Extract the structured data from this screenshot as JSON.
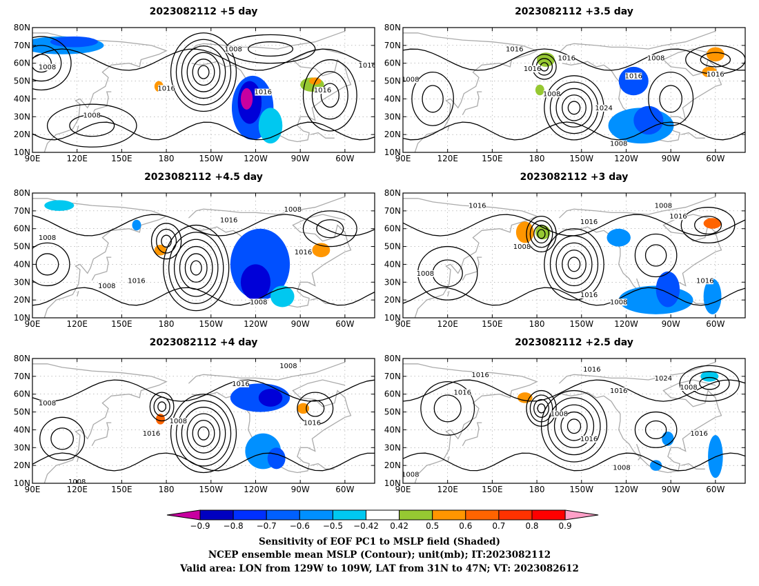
{
  "panels": [
    {
      "title": "2023082112 +5 day",
      "contour_labels": [
        "1008",
        "1008",
        "1008",
        "1016",
        "1016",
        "1016",
        "1016"
      ],
      "blobs": [
        {
          "lon": 110,
          "lat": 70,
          "rx": 28,
          "ry": 5,
          "color": "#0090ff"
        },
        {
          "lon": 118,
          "lat": 72,
          "rx": 16,
          "ry": 3,
          "color": "#0050ff"
        },
        {
          "lon": 238,
          "lat": 35,
          "rx": 14,
          "ry": 18,
          "color": "#0050ff"
        },
        {
          "lon": 236,
          "lat": 38,
          "rx": 8,
          "ry": 12,
          "color": "#0000d8"
        },
        {
          "lon": 234,
          "lat": 40,
          "rx": 4,
          "ry": 6,
          "color": "#c800a0"
        },
        {
          "lon": 250,
          "lat": 25,
          "rx": 8,
          "ry": 10,
          "color": "#00c8f0"
        },
        {
          "lon": 278,
          "lat": 48,
          "rx": 8,
          "ry": 4,
          "color": "#96c832"
        },
        {
          "lon": 280,
          "lat": 50,
          "rx": 4,
          "ry": 2,
          "color": "#ff9600"
        },
        {
          "lon": 175,
          "lat": 47,
          "rx": 3,
          "ry": 3,
          "color": "#ff9600"
        }
      ]
    },
    {
      "title": "2023082112 +3.5 day",
      "contour_labels": [
        "1008",
        "1008",
        "1008",
        "1008",
        "1016",
        "1016",
        "1016",
        "1016",
        "1016",
        "1024"
      ],
      "blobs": [
        {
          "lon": 250,
          "lat": 25,
          "rx": 22,
          "ry": 10,
          "color": "#0090ff"
        },
        {
          "lon": 255,
          "lat": 28,
          "rx": 10,
          "ry": 8,
          "color": "#0050ff"
        },
        {
          "lon": 245,
          "lat": 50,
          "rx": 10,
          "ry": 8,
          "color": "#0050ff"
        },
        {
          "lon": 300,
          "lat": 65,
          "rx": 6,
          "ry": 4,
          "color": "#ff9600"
        },
        {
          "lon": 296,
          "lat": 55,
          "rx": 5,
          "ry": 3,
          "color": "#ff9600"
        },
        {
          "lon": 186,
          "lat": 62,
          "rx": 6,
          "ry": 4,
          "color": "#96c832"
        },
        {
          "lon": 182,
          "lat": 45,
          "rx": 3,
          "ry": 3,
          "color": "#96c832"
        }
      ]
    },
    {
      "title": "2023082112 +4.5 day",
      "contour_labels": [
        "1008",
        "1008",
        "1008",
        "1008",
        "1016",
        "1016",
        "1016"
      ],
      "blobs": [
        {
          "lon": 243,
          "lat": 40,
          "rx": 20,
          "ry": 20,
          "color": "#0050ff"
        },
        {
          "lon": 240,
          "lat": 30,
          "rx": 10,
          "ry": 10,
          "color": "#0000d8"
        },
        {
          "lon": 258,
          "lat": 22,
          "rx": 8,
          "ry": 6,
          "color": "#00c8f0"
        },
        {
          "lon": 284,
          "lat": 48,
          "rx": 6,
          "ry": 4,
          "color": "#ff9600"
        },
        {
          "lon": 176,
          "lat": 48,
          "rx": 4,
          "ry": 3,
          "color": "#ff9600"
        },
        {
          "lon": 108,
          "lat": 73,
          "rx": 10,
          "ry": 3,
          "color": "#00c8f0"
        },
        {
          "lon": 160,
          "lat": 62,
          "rx": 3,
          "ry": 3,
          "color": "#0090ff"
        }
      ]
    },
    {
      "title": "2023082112 +3 day",
      "contour_labels": [
        "1008",
        "1008",
        "1008",
        "1008",
        "1016",
        "1016",
        "1016",
        "1016",
        "1016"
      ],
      "blobs": [
        {
          "lon": 260,
          "lat": 20,
          "rx": 25,
          "ry": 8,
          "color": "#0090ff"
        },
        {
          "lon": 268,
          "lat": 26,
          "rx": 8,
          "ry": 10,
          "color": "#0050ff"
        },
        {
          "lon": 298,
          "lat": 22,
          "rx": 6,
          "ry": 10,
          "color": "#0090ff"
        },
        {
          "lon": 298,
          "lat": 63,
          "rx": 6,
          "ry": 3,
          "color": "#ff6400"
        },
        {
          "lon": 172,
          "lat": 58,
          "rx": 6,
          "ry": 6,
          "color": "#ff9600"
        },
        {
          "lon": 184,
          "lat": 58,
          "rx": 5,
          "ry": 4,
          "color": "#96c832"
        },
        {
          "lon": 235,
          "lat": 55,
          "rx": 8,
          "ry": 5,
          "color": "#0090ff"
        }
      ]
    },
    {
      "title": "2023082112 +4 day",
      "contour_labels": [
        "1008",
        "1008",
        "1008",
        "1008",
        "1016",
        "1016",
        "1016"
      ],
      "blobs": [
        {
          "lon": 243,
          "lat": 58,
          "rx": 20,
          "ry": 8,
          "color": "#0050ff"
        },
        {
          "lon": 250,
          "lat": 58,
          "rx": 8,
          "ry": 5,
          "color": "#0000d8"
        },
        {
          "lon": 245,
          "lat": 28,
          "rx": 12,
          "ry": 10,
          "color": "#0090ff"
        },
        {
          "lon": 254,
          "lat": 24,
          "rx": 6,
          "ry": 6,
          "color": "#0050ff"
        },
        {
          "lon": 272,
          "lat": 52,
          "rx": 4,
          "ry": 3,
          "color": "#ff9600"
        },
        {
          "lon": 176,
          "lat": 46,
          "rx": 3,
          "ry": 3,
          "color": "#ff6400"
        }
      ]
    },
    {
      "title": "2023082112 +2.5 day",
      "contour_labels": [
        "1008",
        "1008",
        "1008",
        "1008",
        "1016",
        "1016",
        "1016",
        "1016",
        "1016",
        "1016",
        "1024"
      ],
      "blobs": [
        {
          "lon": 296,
          "lat": 70,
          "rx": 6,
          "ry": 3,
          "color": "#00c8f0"
        },
        {
          "lon": 172,
          "lat": 58,
          "rx": 5,
          "ry": 3,
          "color": "#ff9600"
        },
        {
          "lon": 268,
          "lat": 35,
          "rx": 4,
          "ry": 4,
          "color": "#0090ff"
        },
        {
          "lon": 300,
          "lat": 25,
          "rx": 5,
          "ry": 12,
          "color": "#0090ff"
        },
        {
          "lon": 260,
          "lat": 20,
          "rx": 4,
          "ry": 3,
          "color": "#0090ff"
        }
      ]
    }
  ],
  "lat_ticks": [
    "80N",
    "70N",
    "60N",
    "50N",
    "40N",
    "30N",
    "20N",
    "10N"
  ],
  "lon_ticks": [
    "90E",
    "120E",
    "150E",
    "180",
    "150W",
    "120W",
    "90W",
    "60W"
  ],
  "colorbar": {
    "colors": [
      "#c800a0",
      "#0000c0",
      "#0030ff",
      "#0060ff",
      "#0090ff",
      "#00c8f0",
      "#ffffff",
      "#96c832",
      "#ff9600",
      "#ff6400",
      "#ff3200",
      "#ff0000",
      "#ffa0c8"
    ],
    "labels": [
      "−0.9",
      "−0.8",
      "−0.7",
      "−0.6",
      "−0.5",
      "−0.42",
      "0.42",
      "0.5",
      "0.6",
      "0.7",
      "0.8",
      "0.9"
    ]
  },
  "caption": {
    "line1": "Sensitivity of EOF PC1 to MSLP field (Shaded)",
    "line2": "NCEP ensemble mean MSLP (Contour); unit(mb); IT:2023082112",
    "line3": "Valid area: LON from 129W to 109W, LAT from 31N to 47N; VT: 2023082612"
  }
}
